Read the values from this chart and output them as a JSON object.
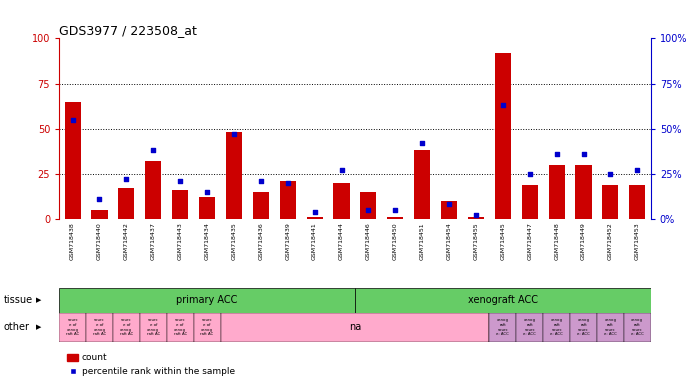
{
  "title": "GDS3977 / 223508_at",
  "samples": [
    "GSM718438",
    "GSM718440",
    "GSM718442",
    "GSM718437",
    "GSM718443",
    "GSM718434",
    "GSM718435",
    "GSM718436",
    "GSM718439",
    "GSM718441",
    "GSM718444",
    "GSM718446",
    "GSM718450",
    "GSM718451",
    "GSM718454",
    "GSM718455",
    "GSM718445",
    "GSM718447",
    "GSM718448",
    "GSM718449",
    "GSM718452",
    "GSM718453"
  ],
  "counts": [
    65,
    5,
    17,
    32,
    16,
    12,
    48,
    15,
    21,
    1,
    20,
    15,
    1,
    38,
    10,
    1,
    92,
    19,
    30,
    30,
    19,
    19
  ],
  "percentiles": [
    55,
    11,
    22,
    38,
    21,
    15,
    47,
    21,
    20,
    4,
    27,
    5,
    5,
    42,
    8,
    2,
    63,
    25,
    36,
    36,
    25,
    27
  ],
  "primary_count": 11,
  "xenograft_count": 11,
  "bar_color": "#CC0000",
  "dot_color": "#0000CC",
  "tissue_color": "#66CC66",
  "pink_color": "#FFAACC",
  "violet_color": "#CC99CC",
  "xtick_bg": "#CCCCCC",
  "tissue_label": "tissue",
  "other_label": "other",
  "legend_count": "count",
  "legend_pct": "percentile rank within the sample",
  "ylim": [
    0,
    100
  ],
  "yticks": [
    0,
    25,
    50,
    75,
    100
  ],
  "grid_lines": [
    25,
    50,
    75
  ],
  "right_axis_color": "#0000CC",
  "left_axis_color": "#CC0000",
  "title_fontsize": 9
}
